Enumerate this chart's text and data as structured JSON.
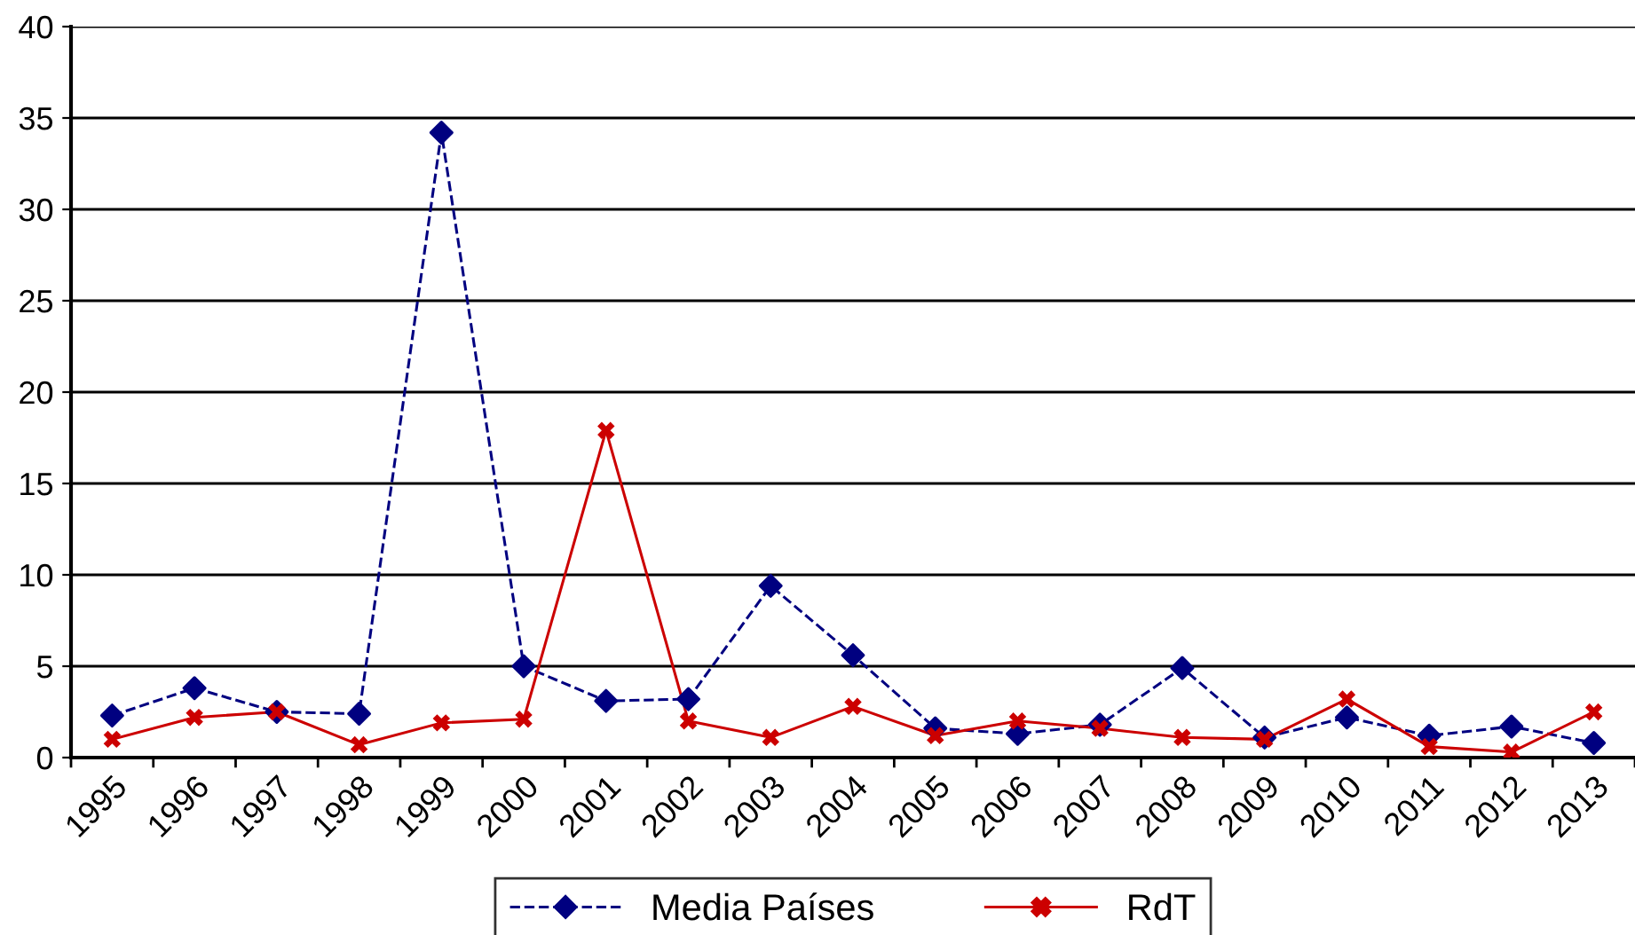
{
  "chart_data": {
    "type": "line",
    "categories": [
      "1995",
      "1996",
      "1997",
      "1998",
      "1999",
      "2000",
      "2001",
      "2002",
      "2003",
      "2004",
      "2005",
      "2006",
      "2007",
      "2008",
      "2009",
      "2010",
      "2011",
      "2012",
      "2013"
    ],
    "series": [
      {
        "name": "Media Países",
        "color": "#000080",
        "marker": "diamond",
        "line_style": "dashed",
        "values": [
          2.3,
          3.8,
          2.5,
          2.4,
          34.2,
          5.0,
          3.1,
          3.2,
          9.4,
          5.6,
          1.6,
          1.3,
          1.8,
          4.9,
          1.1,
          2.2,
          1.2,
          1.7,
          0.8
        ]
      },
      {
        "name": "RdT",
        "color": "#cc0000",
        "marker": "cross",
        "line_style": "solid",
        "values": [
          1.0,
          2.2,
          2.5,
          0.7,
          1.9,
          2.1,
          17.9,
          2.0,
          1.1,
          2.8,
          1.2,
          2.0,
          1.6,
          1.1,
          1.0,
          3.2,
          0.6,
          0.3,
          2.5
        ]
      }
    ],
    "ylim": [
      0,
      40
    ],
    "yticks": [
      0,
      5,
      10,
      15,
      20,
      25,
      30,
      35,
      40
    ],
    "grid": "y",
    "legend": "bottom"
  }
}
